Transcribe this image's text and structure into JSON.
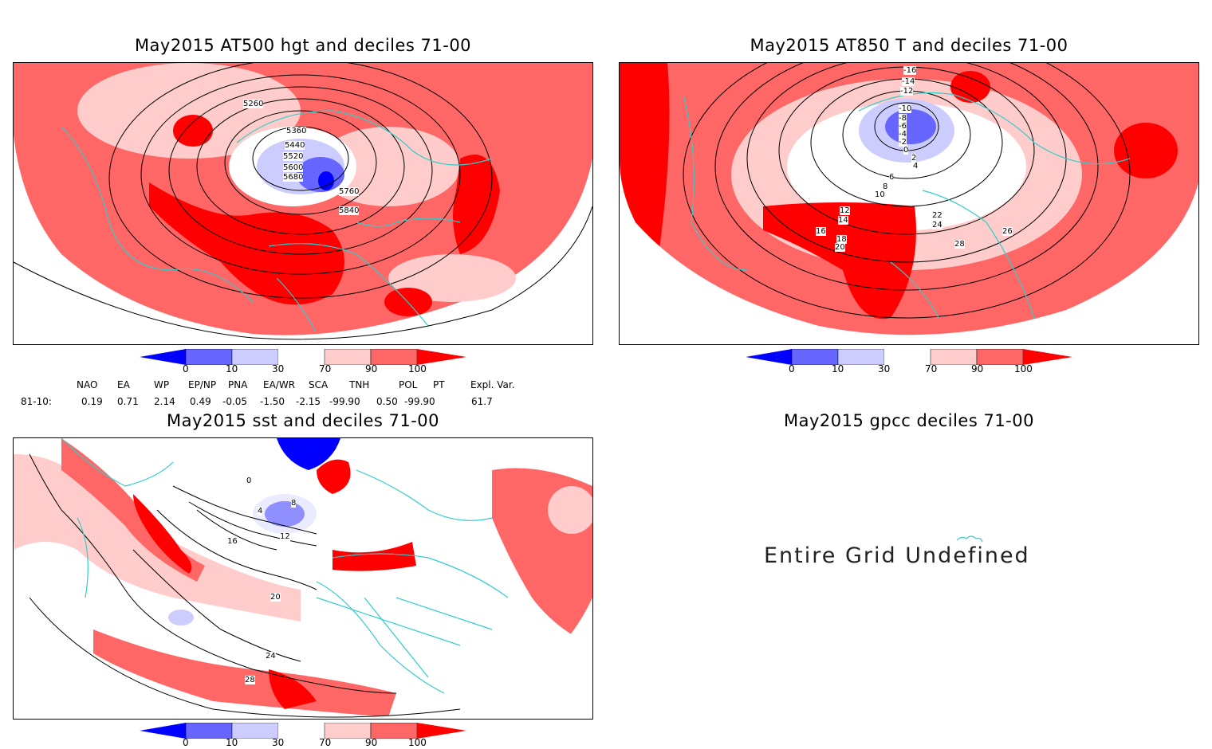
{
  "colors": {
    "d0": "#0000ff",
    "d10": "#6666ff",
    "d30": "#ccccff",
    "neutral": "#ffffff",
    "d70": "#ffcccc",
    "d90": "#ff6666",
    "d100": "#ff0000",
    "coast": "#33cccc",
    "contour": "#000000"
  },
  "panels": [
    {
      "title": "May2015 AT500 hgt and deciles 71-00",
      "contour_labels": [
        "5260",
        "5360",
        "5440",
        "5520",
        "5600",
        "5680",
        "5760",
        "5840"
      ]
    },
    {
      "title": "May2015 AT850 T and deciles 71-00",
      "contour_labels": [
        "-16",
        "-14",
        "-12",
        "-10",
        "-8",
        "-6",
        "-4",
        "-2",
        "0",
        "2",
        "4",
        "6",
        "8",
        "10",
        "12",
        "14",
        "16",
        "18",
        "20",
        "22",
        "24",
        "26",
        "28"
      ]
    },
    {
      "title": "May2015 sst and deciles 71-00",
      "contour_labels": [
        "0",
        "4",
        "8",
        "12",
        "16",
        "20",
        "24",
        "28"
      ]
    },
    {
      "title": "May2015 gpcc deciles 71-00",
      "message": "Entire Grid Undefined"
    }
  ],
  "colorbar": {
    "ticks": [
      "0",
      "10",
      "30",
      "70",
      "90",
      "100"
    ]
  },
  "indices": {
    "headers": [
      "NAO",
      "EA",
      "WP",
      "EP/NP",
      "PNA",
      "EA/WR",
      "SCA",
      "TNH",
      "POL",
      "PT",
      "Expl. Var."
    ],
    "row_label": "81-10:",
    "values": [
      "0.19",
      "0.71",
      "2.14",
      "0.49",
      "-0.05",
      "-1.50",
      "-2.15",
      "-99.90",
      "0.50",
      "-99.90",
      "61.7"
    ]
  }
}
